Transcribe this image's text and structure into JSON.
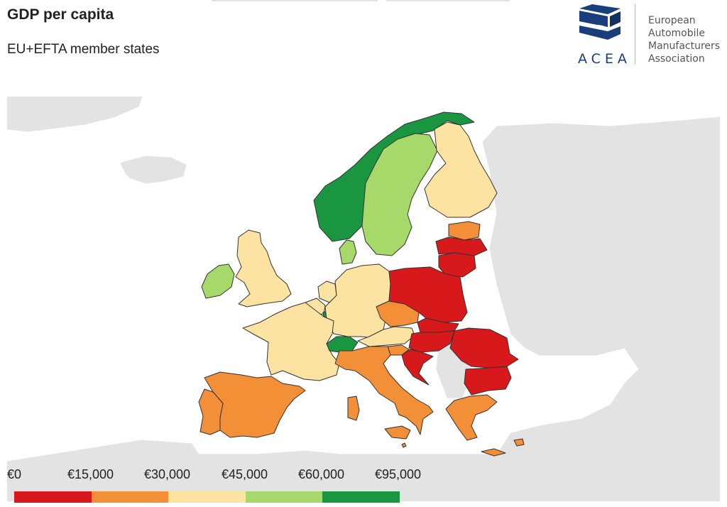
{
  "title": "GDP per capita",
  "subtitle": "EU+EFTA member states",
  "logo": {
    "wordmark": "ACEA",
    "org_lines": [
      "European",
      "Automobile",
      "Manufacturers",
      "Association"
    ]
  },
  "legend": {
    "labels": [
      "€0",
      "€15,000",
      "€30,000",
      "€45,000",
      "€60,000",
      "€95,000"
    ],
    "colors": [
      "#d7191c",
      "#f38f37",
      "#fde3a1",
      "#a6d96a",
      "#1a9641"
    ]
  },
  "map": {
    "countries": {
      "norway": 5,
      "iceland": 0,
      "sweden": 4,
      "finland": 3,
      "denmark": 4,
      "estonia": 2,
      "latvia": 1,
      "lithuania": 1,
      "ireland": 4,
      "united_kingdom": 3,
      "netherlands": 3,
      "belgium": 3,
      "luxembourg": 5,
      "germany": 3,
      "france": 3,
      "switzerland": 5,
      "austria": 3,
      "czechia": 2,
      "poland": 1,
      "slovakia": 1,
      "hungary": 1,
      "slovenia": 2,
      "croatia": 1,
      "romania": 1,
      "bulgaria": 1,
      "italy": 2,
      "spain": 2,
      "portugal": 2,
      "greece": 2,
      "cyprus": 2,
      "malta": 2
    }
  }
}
